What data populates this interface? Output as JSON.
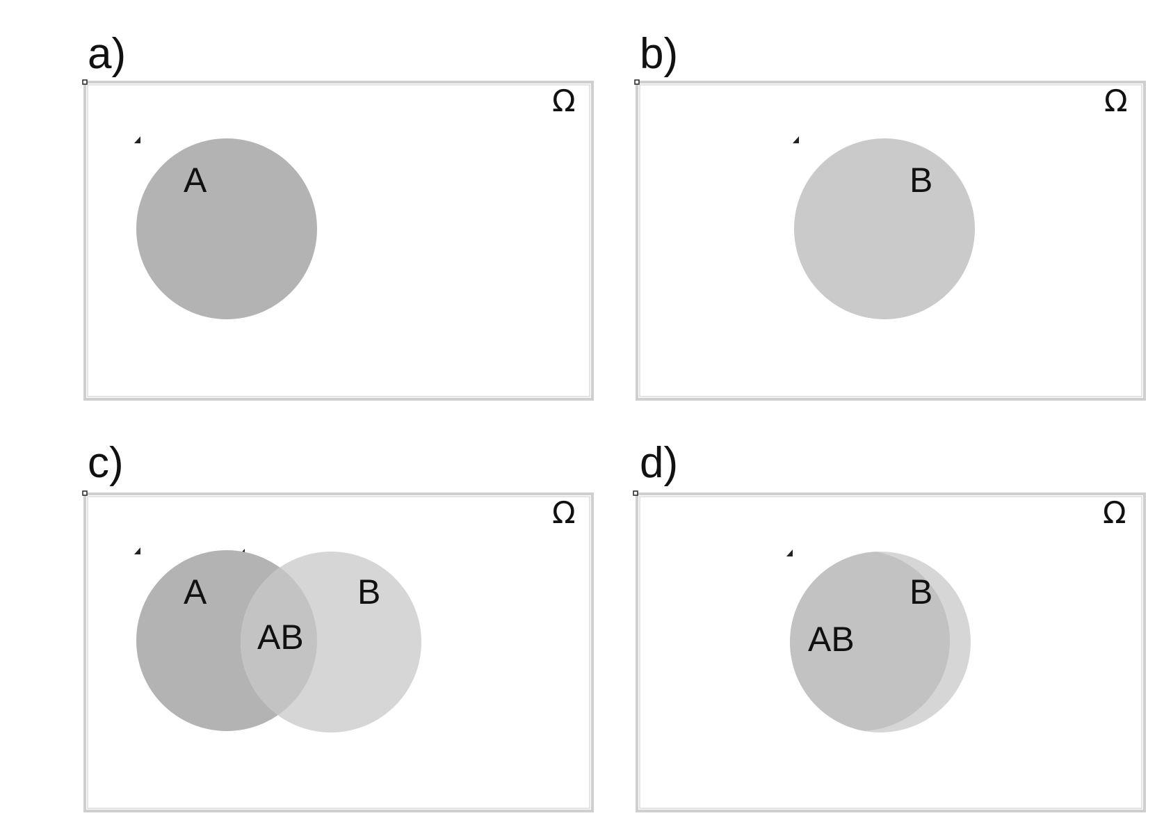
{
  "colors": {
    "set_a": "#b3b3b3",
    "set_b_single": "#cacaca",
    "set_b_overlap": "#d6d6d6",
    "intersection_c": "#c3c3c3",
    "intersection_d": "#c2c2c2",
    "frame": "#cfcfcf",
    "background": "#ffffff"
  },
  "universe_symbol": "Ω",
  "panels": [
    {
      "id": "a",
      "label": "a)",
      "sets": [
        {
          "label": "A"
        }
      ]
    },
    {
      "id": "b",
      "label": "b)",
      "sets": [
        {
          "label": "B"
        }
      ]
    },
    {
      "id": "c",
      "label": "c)",
      "sets": [
        {
          "label": "A"
        },
        {
          "label": "B"
        }
      ],
      "intersection_label": "AB"
    },
    {
      "id": "d",
      "label": "d)",
      "sets": [
        {
          "label": "B"
        }
      ],
      "intersection_label": "AB"
    }
  ]
}
